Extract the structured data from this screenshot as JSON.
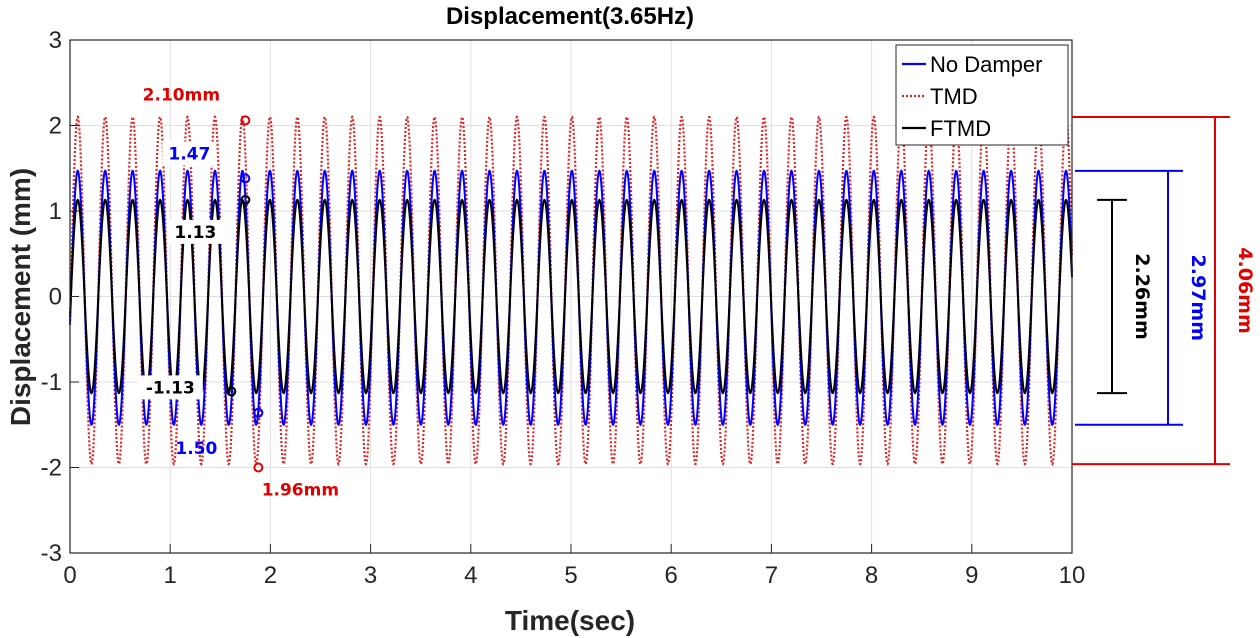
{
  "chart_data": {
    "type": "line",
    "title": "Displacement(3.65Hz)",
    "xlabel": "Time(sec)",
    "ylabel": "Displacement (mm)",
    "xlim": [
      0,
      10
    ],
    "ylim": [
      -3,
      3
    ],
    "xticks": [
      "0",
      "1",
      "2",
      "3",
      "4",
      "5",
      "6",
      "7",
      "8",
      "9",
      "10"
    ],
    "yticks": [
      "3",
      "2",
      "1",
      "0",
      "-1",
      "-2",
      "-3"
    ],
    "grid": true,
    "legend_position": "top-right",
    "frequency_hz": 3.65,
    "series": [
      {
        "name": "No Damper",
        "color": "#0000ff",
        "style": "solid",
        "amplitude_max": 1.47,
        "amplitude_min": -1.5
      },
      {
        "name": "TMD",
        "color": "#d62728",
        "style": "dotted",
        "amplitude_max": 2.1,
        "amplitude_min": -1.96
      },
      {
        "name": "FTMD",
        "color": "#000000",
        "style": "solid",
        "amplitude_max": 1.13,
        "amplitude_min": -1.13
      }
    ],
    "annotations": [
      {
        "text": "2.10mm",
        "color": "#e00000",
        "x": 1.75,
        "y": 2.06
      },
      {
        "text": "1.47",
        "color": "#0000ff",
        "x": 1.75,
        "y": 1.38
      },
      {
        "text": "1.13",
        "color": "#000000",
        "x": 1.75,
        "y": 1.13
      },
      {
        "text": "-1.13",
        "color": "#000000",
        "x": 1.61,
        "y": -1.11
      },
      {
        "text": "1.50",
        "color": "#0000ff",
        "x": 1.88,
        "y": -1.36
      },
      {
        "text": "1.96mm",
        "color": "#e00000",
        "x": 1.88,
        "y": -2.0
      }
    ],
    "ranges": [
      {
        "text": "2.26mm",
        "color": "#000000",
        "top": 1.13,
        "bottom": -1.13
      },
      {
        "text": "2.97mm",
        "color": "#0000ff",
        "top": 1.47,
        "bottom": -1.5
      },
      {
        "text": "4.06mm",
        "color": "#e00000",
        "top": 2.1,
        "bottom": -1.96
      }
    ]
  }
}
